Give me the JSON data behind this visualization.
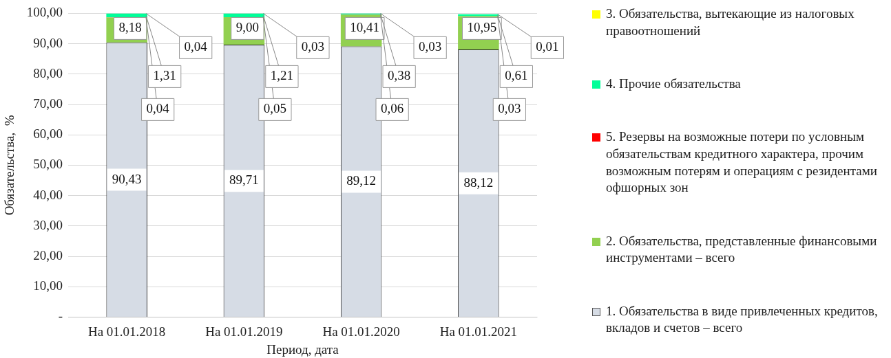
{
  "chart_data": {
    "type": "bar",
    "stacked": true,
    "xlabel": "Период, дата",
    "ylabel": "Обязательства,  %",
    "categories": [
      "На 01.01.2018",
      "На 01.01.2019",
      "На 01.01.2020",
      "На 01.01.2021"
    ],
    "series": [
      {
        "name": "1. Обязательства в виде привлеченных кредитов, вкладов и счетов – всего",
        "color": "#d6dce5",
        "values": [
          90.43,
          89.71,
          89.12,
          88.12
        ],
        "value_labels": [
          "90,43",
          "89,71",
          "89,12",
          "88,12"
        ]
      },
      {
        "name": "2. Обязательства, представленные финансовыми инструментами – всего",
        "color": "#92d050",
        "values": [
          8.18,
          9.0,
          10.41,
          10.95
        ],
        "value_labels": [
          "8,18",
          "9,00",
          "10,41",
          "10,95"
        ]
      },
      {
        "name": "5. Резервы на возможные потери по условным обязательствам кредитного характера, прочим возможным потерям и операциям с резидентами офшорных зон",
        "color": "#ff0000",
        "values": [
          0.04,
          0.05,
          0.06,
          0.03
        ],
        "value_labels": [
          "0,04",
          "0,05",
          "0,06",
          "0,03"
        ]
      },
      {
        "name": "4. Прочие обязательства",
        "color": "#00ff99",
        "values": [
          1.31,
          1.21,
          0.38,
          0.61
        ],
        "value_labels": [
          "1,31",
          "1,21",
          "0,38",
          "0,61"
        ]
      },
      {
        "name": "3. Обязательства, вытекающие из налоговых правоотношений",
        "color": "#ffff00",
        "values": [
          0.04,
          0.03,
          0.03,
          0.01
        ],
        "value_labels": [
          "0,04",
          "0,03",
          "0,03",
          "0,01"
        ]
      }
    ],
    "ylim": [
      0,
      100
    ],
    "yticks": [
      {
        "value": 0,
        "label": "-"
      },
      {
        "value": 10,
        "label": "10,00"
      },
      {
        "value": 20,
        "label": "20,00"
      },
      {
        "value": 30,
        "label": "30,00"
      },
      {
        "value": 40,
        "label": "40,00"
      },
      {
        "value": 50,
        "label": "50,00"
      },
      {
        "value": 60,
        "label": "60,00"
      },
      {
        "value": 70,
        "label": "70,00"
      },
      {
        "value": 80,
        "label": "80,00"
      },
      {
        "value": 90,
        "label": "90,00"
      },
      {
        "value": 100,
        "label": "100,00"
      }
    ],
    "grid": "y",
    "legend": "right"
  }
}
